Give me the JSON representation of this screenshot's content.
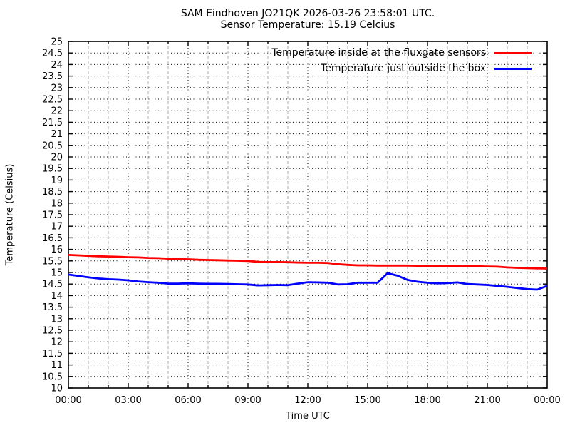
{
  "header": {
    "title_line1": "SAM Eindhoven JO21QK 2026-03-26 23:58:01 UTC.",
    "title_line2": "Sensor Temperature: 15.19 Celcius"
  },
  "chart_data": {
    "type": "line",
    "title": "SAM Eindhoven JO21QK 2026-03-26 23:58:01 UTC.",
    "subtitle": "Sensor Temperature: 15.19 Celcius",
    "xlabel": "Time UTC",
    "ylabel": "Temperature (Celsius)",
    "ylim": [
      10,
      25
    ],
    "xlim_hours": [
      0,
      24
    ],
    "grid": {
      "major_color": "#000000",
      "major_style": "dotted",
      "minor_color": "#ababab",
      "minor_style": "dashed",
      "minor_interval_hours": 1
    },
    "legend_position": "top-right-inside",
    "y_ticks": {
      "start": 10,
      "step": 0.5,
      "labels": [
        "10",
        "10.5",
        "11",
        "11.5",
        "12",
        "12.5",
        "13",
        "13.5",
        "14",
        "14.5",
        "15",
        "15.5",
        "16",
        "16.5",
        "17",
        "17.5",
        "18",
        "18.5",
        "19",
        "19.5",
        "20",
        "20.5",
        "21",
        "21.5",
        "22",
        "22.5",
        "23",
        "23.5",
        "24",
        "24.5",
        "25"
      ]
    },
    "x_ticks": [
      {
        "h": 0,
        "label": "00:00"
      },
      {
        "h": 3,
        "label": "03:00"
      },
      {
        "h": 6,
        "label": "06:00"
      },
      {
        "h": 9,
        "label": "09:00"
      },
      {
        "h": 12,
        "label": "12:00"
      },
      {
        "h": 15,
        "label": "15:00"
      },
      {
        "h": 18,
        "label": "18:00"
      },
      {
        "h": 21,
        "label": "21:00"
      },
      {
        "h": 24,
        "label": "00:00"
      }
    ],
    "x_hours": [
      0,
      0.5,
      1,
      1.5,
      2,
      2.5,
      3,
      3.5,
      4,
      4.5,
      5,
      5.5,
      6,
      6.5,
      7,
      7.5,
      8,
      8.5,
      9,
      9.5,
      10,
      10.5,
      11,
      11.5,
      12,
      12.5,
      13,
      13.5,
      14,
      14.5,
      15,
      15.5,
      16,
      16.5,
      17,
      17.5,
      18,
      18.5,
      19,
      19.5,
      20,
      20.5,
      21,
      21.5,
      22,
      22.5,
      23,
      23.5,
      24
    ],
    "series": [
      {
        "name": "Temperature inside at the fluxgate sensors",
        "color": "#ff0000",
        "values": [
          15.76,
          15.74,
          15.72,
          15.7,
          15.69,
          15.68,
          15.66,
          15.65,
          15.63,
          15.62,
          15.6,
          15.58,
          15.57,
          15.55,
          15.54,
          15.53,
          15.52,
          15.51,
          15.5,
          15.46,
          15.45,
          15.45,
          15.44,
          15.43,
          15.42,
          15.42,
          15.41,
          15.36,
          15.33,
          15.31,
          15.31,
          15.3,
          15.3,
          15.3,
          15.3,
          15.29,
          15.29,
          15.29,
          15.28,
          15.28,
          15.27,
          15.27,
          15.26,
          15.25,
          15.22,
          15.2,
          15.19,
          15.18,
          15.17
        ]
      },
      {
        "name": "Temperature just outside the box",
        "color": "#0000ff",
        "values": [
          14.91,
          14.85,
          14.79,
          14.74,
          14.71,
          14.69,
          14.66,
          14.61,
          14.58,
          14.56,
          14.52,
          14.52,
          14.53,
          14.52,
          14.51,
          14.51,
          14.5,
          14.49,
          14.48,
          14.44,
          14.45,
          14.46,
          14.45,
          14.52,
          14.58,
          14.57,
          14.56,
          14.48,
          14.49,
          14.56,
          14.56,
          14.56,
          14.97,
          14.86,
          14.68,
          14.6,
          14.56,
          14.53,
          14.54,
          14.57,
          14.5,
          14.48,
          14.46,
          14.42,
          14.38,
          14.33,
          14.28,
          14.26,
          14.42
        ]
      }
    ]
  }
}
